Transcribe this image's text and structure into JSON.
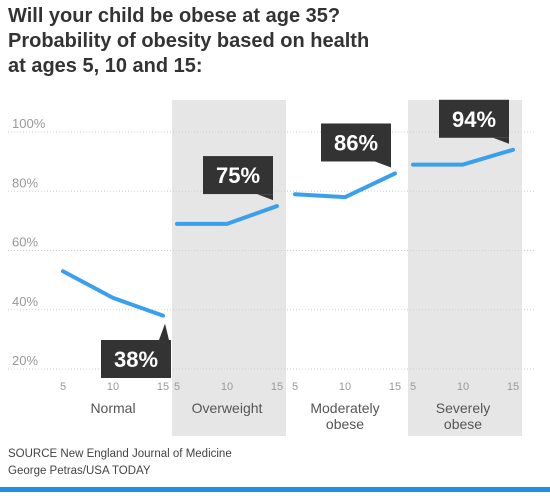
{
  "title_lines": [
    "Will your child be obese at age 35?",
    "Probability of obesity based on health",
    "at ages 5, 10 and 15:"
  ],
  "chart_data": {
    "type": "line",
    "ylim": [
      20,
      100
    ],
    "yticks": [
      "20%",
      "40%",
      "60%",
      "80%",
      "100%"
    ],
    "x": [
      5,
      10,
      15
    ],
    "grid": true,
    "panels": [
      {
        "name_lines": [
          "Normal"
        ],
        "values": [
          53,
          44,
          38
        ],
        "callout": "38%",
        "shaded": false
      },
      {
        "name_lines": [
          "Overweight"
        ],
        "values": [
          69,
          69,
          75
        ],
        "callout": "75%",
        "shaded": true
      },
      {
        "name_lines": [
          "Moderately",
          "obese"
        ],
        "values": [
          79,
          78,
          86
        ],
        "callout": "86%",
        "shaded": false
      },
      {
        "name_lines": [
          "Severely",
          "obese"
        ],
        "values": [
          89,
          89,
          94
        ],
        "callout": "94%",
        "shaded": true
      }
    ]
  },
  "footer": {
    "source": "SOURCE New England Journal of Medicine",
    "credit": "George Petras/USA TODAY"
  },
  "colors": {
    "line": "#3aa0ee",
    "shade": "#e6e6e6",
    "callout": "#333333",
    "grid": "#cfcfcf",
    "axis_text": "#999999",
    "bar": "#1e90e8"
  }
}
